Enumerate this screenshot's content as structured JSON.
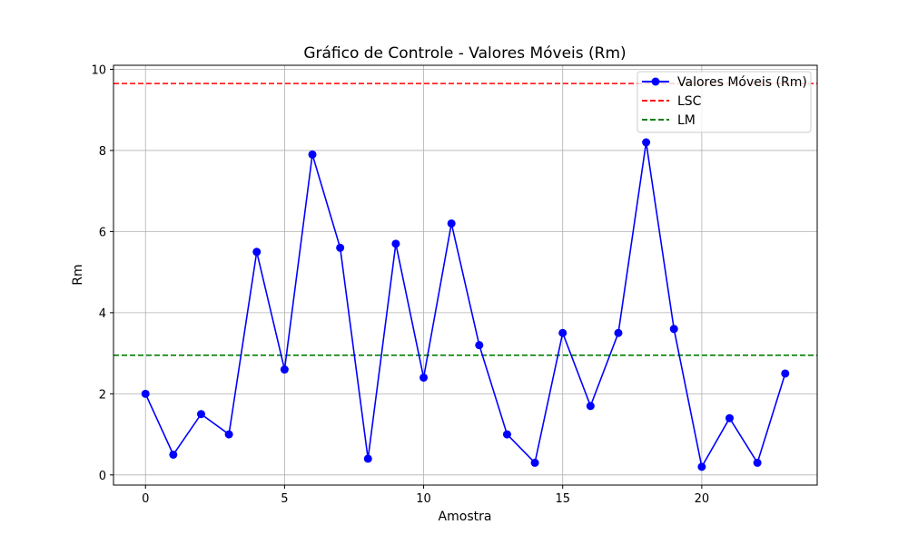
{
  "chart_data": {
    "type": "line",
    "title": "Gráfico de Controle - Valores Móveis (Rm)",
    "xlabel": "Amostra",
    "ylabel": "Rm",
    "xlim": [
      -1.15,
      24.15
    ],
    "ylim": [
      -0.25,
      10.1
    ],
    "xticks": [
      0,
      5,
      10,
      15,
      20
    ],
    "yticks": [
      0,
      2,
      4,
      6,
      8,
      10
    ],
    "grid": true,
    "legend_position": "top-right",
    "x": [
      0,
      1,
      2,
      3,
      4,
      5,
      6,
      7,
      8,
      9,
      10,
      11,
      12,
      13,
      14,
      15,
      16,
      17,
      18,
      19,
      20,
      21,
      22,
      23
    ],
    "series": [
      {
        "name": "Valores Móveis (Rm)",
        "color": "#0000ff",
        "style": "solid-with-markers",
        "values": [
          2.0,
          0.5,
          1.5,
          1.0,
          5.5,
          2.6,
          7.9,
          5.6,
          0.4,
          5.7,
          2.4,
          6.2,
          3.2,
          1.0,
          0.3,
          3.5,
          1.7,
          3.5,
          8.2,
          3.6,
          0.2,
          1.4,
          0.3,
          2.5
        ]
      }
    ],
    "reference_lines": [
      {
        "name": "LSC",
        "value": 9.65,
        "color": "#ff0000",
        "style": "dashed"
      },
      {
        "name": "LM",
        "value": 2.95,
        "color": "#008000",
        "style": "dashed"
      }
    ]
  }
}
